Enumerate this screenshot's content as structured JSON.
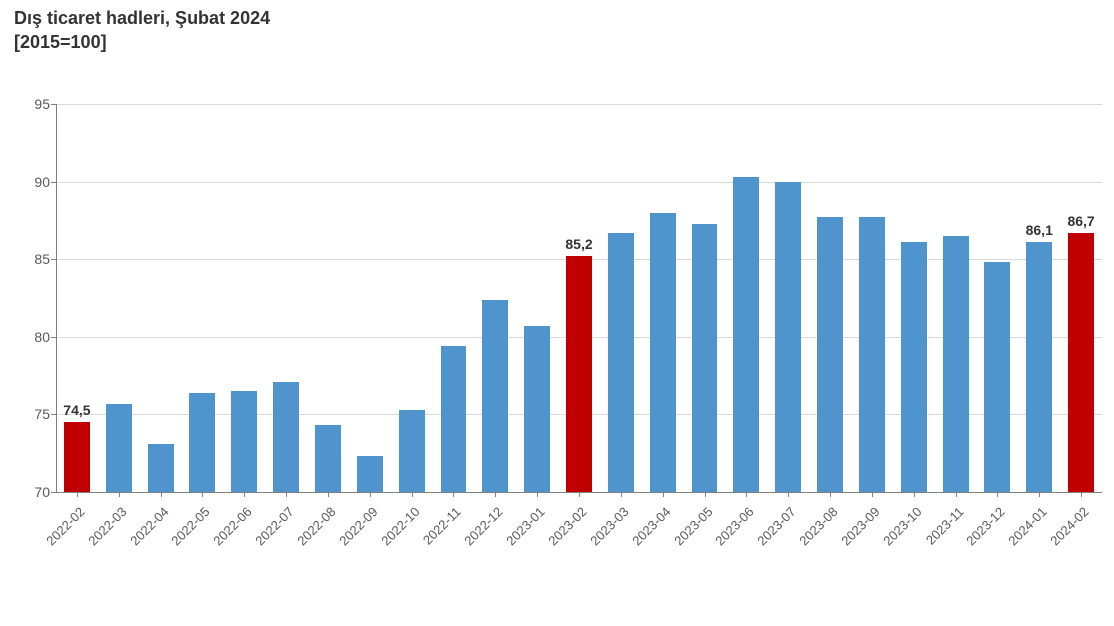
{
  "title_line1": "Dış ticaret hadleri, Şubat 2024",
  "title_line2": "[2015=100]",
  "chart": {
    "type": "bar",
    "background_color": "#ffffff",
    "grid_color": "#d9d9d9",
    "axis_color": "#808080",
    "ylim": [
      70,
      95
    ],
    "ytick_step": 5,
    "yticks": [
      70,
      75,
      80,
      85,
      90,
      95
    ],
    "label_fontsize": 14,
    "xlabel_fontsize": 13,
    "xlabel_rotation_deg": -45,
    "bar_width_ratio": 0.62,
    "categories": [
      "2022-02",
      "2022-03",
      "2022-04",
      "2022-05",
      "2022-06",
      "2022-07",
      "2022-08",
      "2022-09",
      "2022-10",
      "2022-11",
      "2022-12",
      "2023-01",
      "2023-02",
      "2023-03",
      "2023-04",
      "2023-05",
      "2023-06",
      "2023-07",
      "2023-08",
      "2023-09",
      "2023-10",
      "2023-11",
      "2023-12",
      "2024-01",
      "2024-02"
    ],
    "values": [
      74.5,
      75.7,
      73.1,
      76.4,
      76.5,
      77.1,
      74.3,
      72.3,
      75.3,
      79.4,
      82.4,
      80.7,
      85.2,
      86.7,
      88.0,
      87.3,
      90.3,
      90.0,
      87.7,
      87.7,
      86.1,
      86.5,
      84.8,
      86.1,
      86.7
    ],
    "bar_colors": [
      "#c00000",
      "#4f94cd",
      "#4f94cd",
      "#4f94cd",
      "#4f94cd",
      "#4f94cd",
      "#4f94cd",
      "#4f94cd",
      "#4f94cd",
      "#4f94cd",
      "#4f94cd",
      "#4f94cd",
      "#c00000",
      "#4f94cd",
      "#4f94cd",
      "#4f94cd",
      "#4f94cd",
      "#4f94cd",
      "#4f94cd",
      "#4f94cd",
      "#4f94cd",
      "#4f94cd",
      "#4f94cd",
      "#4f94cd",
      "#c00000"
    ],
    "data_labels": {
      "0": "74,5",
      "12": "85,2",
      "23": "86,1",
      "24": "86,7"
    }
  }
}
